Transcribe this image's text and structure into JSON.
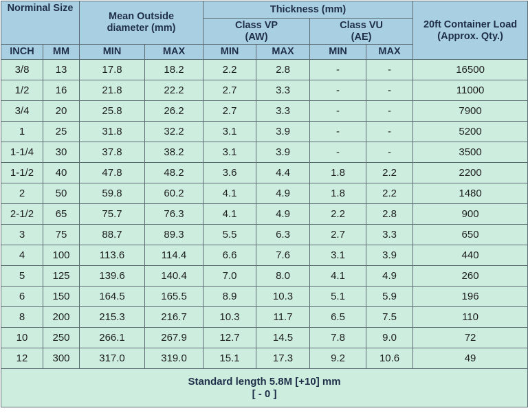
{
  "header": {
    "nominal_size": "Norminal Size",
    "mean_outside": [
      "Mean Outside",
      "diameter (mm)"
    ],
    "thickness": "Thickness (mm)",
    "class_vp": [
      "Class VP",
      "(AW)"
    ],
    "class_vu": [
      "Class VU",
      "(AE)"
    ],
    "container_load": [
      "20ft Container Load",
      "(Approx. Qty.)"
    ],
    "sub": [
      "INCH",
      "MM",
      "MIN",
      "MAX",
      "MIN",
      "MAX",
      "MIN",
      "MAX"
    ]
  },
  "table": {
    "rows": [
      [
        "3/8",
        "13",
        "17.8",
        "18.2",
        "2.2",
        "2.8",
        "-",
        "-",
        "16500"
      ],
      [
        "1/2",
        "16",
        "21.8",
        "22.2",
        "2.7",
        "3.3",
        "-",
        "-",
        "11000"
      ],
      [
        "3/4",
        "20",
        "25.8",
        "26.2",
        "2.7",
        "3.3",
        "-",
        "-",
        "7900"
      ],
      [
        "1",
        "25",
        "31.8",
        "32.2",
        "3.1",
        "3.9",
        "-",
        "-",
        "5200"
      ],
      [
        "1-1/4",
        "30",
        "37.8",
        "38.2",
        "3.1",
        "3.9",
        "-",
        "-",
        "3500"
      ],
      [
        "1-1/2",
        "40",
        "47.8",
        "48.2",
        "3.6",
        "4.4",
        "1.8",
        "2.2",
        "2200"
      ],
      [
        "2",
        "50",
        "59.8",
        "60.2",
        "4.1",
        "4.9",
        "1.8",
        "2.2",
        "1480"
      ],
      [
        "2-1/2",
        "65",
        "75.7",
        "76.3",
        "4.1",
        "4.9",
        "2.2",
        "2.8",
        "900"
      ],
      [
        "3",
        "75",
        "88.7",
        "89.3",
        "5.5",
        "6.3",
        "2.7",
        "3.3",
        "650"
      ],
      [
        "4",
        "100",
        "113.6",
        "114.4",
        "6.6",
        "7.6",
        "3.1",
        "3.9",
        "440"
      ],
      [
        "5",
        "125",
        "139.6",
        "140.4",
        "7.0",
        "8.0",
        "4.1",
        "4.9",
        "260"
      ],
      [
        "6",
        "150",
        "164.5",
        "165.5",
        "8.9",
        "10.3",
        "5.1",
        "5.9",
        "196"
      ],
      [
        "8",
        "200",
        "215.3",
        "216.7",
        "10.3",
        "11.7",
        "6.5",
        "7.5",
        "110"
      ],
      [
        "10",
        "250",
        "266.1",
        "267.9",
        "12.7",
        "14.5",
        "7.8",
        "9.0",
        "72"
      ],
      [
        "12",
        "300",
        "317.0",
        "319.0",
        "15.1",
        "17.3",
        "9.2",
        "10.6",
        "49"
      ]
    ]
  },
  "footer": [
    "Standard length 5.8M [+10] mm",
    "[ - 0 ]"
  ]
}
